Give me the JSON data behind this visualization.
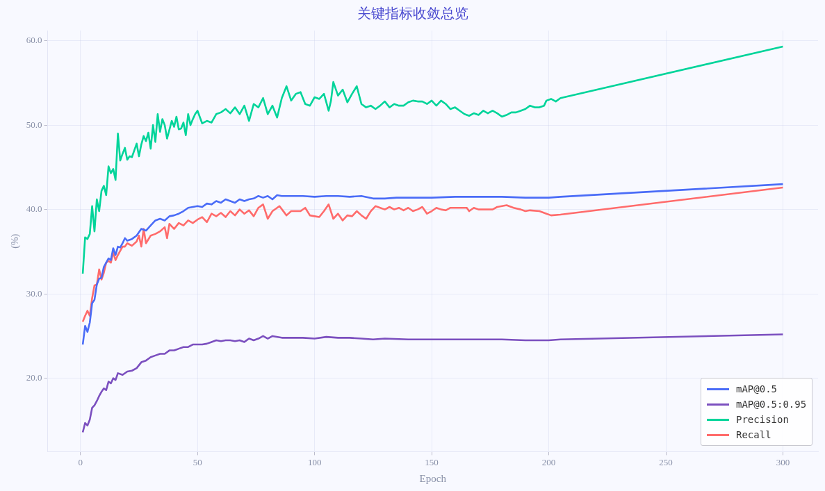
{
  "chart_data": {
    "type": "line",
    "title": "关键指标收敛总览",
    "xlabel": "Epoch",
    "ylabel": "(%)",
    "xlim": [
      -14,
      315
    ],
    "ylim": [
      11.3,
      61.2
    ],
    "xticks": [
      0,
      50,
      100,
      150,
      200,
      250,
      300
    ],
    "yticks": [
      {
        "value": 20,
        "label": "20.0"
      },
      {
        "value": 30,
        "label": "30.0"
      },
      {
        "value": 40,
        "label": "40.0"
      },
      {
        "value": 50,
        "label": "50.0"
      },
      {
        "value": 60,
        "label": "60.0"
      }
    ],
    "grid": true,
    "legend": "bottom right",
    "marker": "none",
    "line_style": "solid",
    "series": [
      {
        "name": "mAP@0.5",
        "color": "#4a6cf7",
        "x": [
          1,
          2,
          3,
          4,
          5,
          6,
          7,
          8,
          9,
          10,
          11,
          12,
          13,
          14,
          15,
          16,
          17,
          18,
          19,
          20,
          22,
          24,
          26,
          28,
          30,
          32,
          34,
          36,
          38,
          40,
          42,
          44,
          46,
          48,
          50,
          52,
          54,
          56,
          58,
          60,
          62,
          64,
          66,
          68,
          70,
          72,
          74,
          76,
          78,
          80,
          82,
          84,
          86,
          88,
          90,
          95,
          100,
          105,
          110,
          115,
          120,
          125,
          130,
          135,
          140,
          150,
          160,
          170,
          180,
          190,
          200,
          205,
          300
        ],
        "values": [
          24.0,
          26.2,
          25.5,
          26.6,
          28.9,
          29.3,
          31.1,
          31.8,
          31.9,
          33.2,
          33.7,
          34.2,
          34.0,
          35.4,
          34.6,
          35.6,
          35.5,
          36.0,
          36.6,
          36.3,
          36.5,
          36.9,
          37.7,
          37.5,
          38.1,
          38.7,
          38.9,
          38.7,
          39.2,
          39.3,
          39.5,
          39.8,
          40.2,
          40.3,
          40.4,
          40.3,
          40.7,
          40.6,
          41.0,
          40.8,
          41.2,
          41.0,
          40.8,
          41.2,
          41.0,
          41.2,
          41.3,
          41.6,
          41.4,
          41.6,
          41.2,
          41.7,
          41.6,
          41.6,
          41.6,
          41.6,
          41.5,
          41.6,
          41.6,
          41.5,
          41.6,
          41.3,
          41.3,
          41.4,
          41.4,
          41.4,
          41.5,
          41.5,
          41.5,
          41.4,
          41.4,
          41.5,
          43.0
        ]
      },
      {
        "name": "mAP@0.5:0.95",
        "color": "#7b4fbf",
        "x": [
          1,
          2,
          3,
          4,
          5,
          6,
          7,
          8,
          9,
          10,
          11,
          12,
          13,
          14,
          15,
          16,
          18,
          20,
          22,
          24,
          26,
          28,
          30,
          32,
          34,
          36,
          38,
          40,
          42,
          44,
          46,
          48,
          50,
          52,
          54,
          56,
          58,
          60,
          62,
          64,
          66,
          68,
          70,
          72,
          74,
          76,
          78,
          80,
          82,
          86,
          90,
          95,
          100,
          105,
          110,
          115,
          120,
          125,
          130,
          140,
          150,
          160,
          170,
          180,
          190,
          200,
          205,
          300
        ],
        "values": [
          13.6,
          14.7,
          14.4,
          15.1,
          16.5,
          16.8,
          17.3,
          17.9,
          18.4,
          18.8,
          18.6,
          19.6,
          19.4,
          20.0,
          19.8,
          20.6,
          20.4,
          20.8,
          20.9,
          21.2,
          21.9,
          22.1,
          22.5,
          22.7,
          22.9,
          22.9,
          23.3,
          23.3,
          23.5,
          23.7,
          23.7,
          24.0,
          24.0,
          24.0,
          24.1,
          24.3,
          24.5,
          24.4,
          24.5,
          24.5,
          24.4,
          24.5,
          24.3,
          24.7,
          24.5,
          24.7,
          25.0,
          24.7,
          25.0,
          24.8,
          24.8,
          24.8,
          24.7,
          24.9,
          24.8,
          24.8,
          24.7,
          24.6,
          24.7,
          24.6,
          24.6,
          24.6,
          24.6,
          24.6,
          24.5,
          24.5,
          24.6,
          25.2
        ]
      },
      {
        "name": "Precision",
        "color": "#00d49a",
        "x": [
          1,
          2,
          3,
          4,
          5,
          6,
          7,
          8,
          9,
          10,
          11,
          12,
          13,
          14,
          15,
          16,
          17,
          18,
          19,
          20,
          21,
          22,
          24,
          25,
          26,
          27,
          28,
          29,
          30,
          31,
          32,
          33,
          34,
          35,
          36,
          37,
          39,
          40,
          41,
          42,
          43,
          44,
          45,
          46,
          47,
          48,
          49,
          50,
          52,
          54,
          56,
          58,
          60,
          62,
          64,
          66,
          68,
          70,
          72,
          74,
          76,
          78,
          80,
          82,
          84,
          86,
          88,
          90,
          92,
          94,
          96,
          98,
          100,
          102,
          104,
          106,
          107,
          108,
          110,
          112,
          114,
          116,
          118,
          120,
          122,
          124,
          126,
          128,
          130,
          132,
          134,
          136,
          138,
          140,
          142,
          144,
          146,
          148,
          150,
          152,
          154,
          156,
          158,
          160,
          162,
          164,
          166,
          168,
          170,
          172,
          174,
          176,
          178,
          180,
          182,
          184,
          186,
          188,
          190,
          192,
          194,
          196,
          198,
          199,
          201,
          203,
          205,
          300
        ],
        "values": [
          32.4,
          36.7,
          36.5,
          37.1,
          40.4,
          37.4,
          41.2,
          39.8,
          42.2,
          42.8,
          41.7,
          45.1,
          44.3,
          44.8,
          43.5,
          49.0,
          45.8,
          46.6,
          47.3,
          45.9,
          46.3,
          46.2,
          47.8,
          46.3,
          47.7,
          48.7,
          48.1,
          49.1,
          47.2,
          50.0,
          48.0,
          51.3,
          49.2,
          50.7,
          50.0,
          48.4,
          50.5,
          49.8,
          51.0,
          49.5,
          49.6,
          50.3,
          48.8,
          51.3,
          50.0,
          50.7,
          51.3,
          51.7,
          50.2,
          50.5,
          50.3,
          51.3,
          51.5,
          51.9,
          51.4,
          52.1,
          51.3,
          52.3,
          50.5,
          52.5,
          52.1,
          53.2,
          51.3,
          52.3,
          50.9,
          53.2,
          54.6,
          52.9,
          53.7,
          53.9,
          52.5,
          52.3,
          53.3,
          53.1,
          53.7,
          51.7,
          52.9,
          55.1,
          53.5,
          54.2,
          52.7,
          53.7,
          54.6,
          52.5,
          52.1,
          52.3,
          51.9,
          52.3,
          52.8,
          52.1,
          52.5,
          52.3,
          52.3,
          52.7,
          52.9,
          52.8,
          52.8,
          52.5,
          52.9,
          52.3,
          52.9,
          52.5,
          51.9,
          52.1,
          51.7,
          51.3,
          51.1,
          51.4,
          51.2,
          51.7,
          51.4,
          51.7,
          51.4,
          51.0,
          51.2,
          51.5,
          51.5,
          51.7,
          51.9,
          52.3,
          52.1,
          52.1,
          52.3,
          52.9,
          53.1,
          52.8,
          53.2,
          59.3
        ]
      },
      {
        "name": "Recall",
        "color": "#ff6b6b",
        "x": [
          1,
          2,
          3,
          4,
          5,
          6,
          7,
          8,
          9,
          10,
          11,
          12,
          13,
          14,
          15,
          16,
          17,
          18,
          19,
          20,
          22,
          24,
          25,
          26,
          27,
          28,
          30,
          32,
          34,
          36,
          37,
          38,
          40,
          42,
          44,
          46,
          48,
          50,
          52,
          54,
          56,
          58,
          60,
          62,
          64,
          66,
          68,
          70,
          72,
          74,
          76,
          78,
          80,
          82,
          84,
          85,
          88,
          90,
          94,
          96,
          98,
          100,
          102,
          104,
          106,
          108,
          110,
          112,
          114,
          116,
          118,
          120,
          122,
          124,
          126,
          128,
          130,
          132,
          134,
          136,
          138,
          140,
          142,
          144,
          146,
          148,
          150,
          152,
          154,
          156,
          158,
          160,
          165,
          166,
          168,
          170,
          172,
          176,
          178,
          180,
          182,
          185,
          188,
          190,
          192,
          196,
          199,
          201,
          205,
          300
        ],
        "values": [
          26.7,
          27.4,
          28.0,
          27.4,
          29.5,
          31.0,
          31.1,
          32.9,
          31.7,
          32.5,
          33.7,
          33.9,
          33.7,
          34.9,
          34.0,
          34.6,
          35.1,
          35.6,
          35.6,
          36.0,
          35.7,
          36.2,
          36.9,
          35.6,
          37.7,
          36.0,
          36.9,
          37.1,
          37.4,
          37.9,
          36.6,
          38.3,
          37.7,
          38.4,
          38.1,
          38.7,
          38.4,
          38.8,
          39.1,
          38.5,
          39.5,
          39.2,
          39.6,
          39.1,
          39.8,
          39.3,
          40.0,
          39.5,
          39.9,
          39.2,
          40.2,
          40.6,
          38.9,
          39.8,
          40.2,
          40.4,
          39.3,
          39.8,
          39.8,
          40.2,
          39.3,
          39.2,
          39.1,
          39.8,
          40.6,
          38.9,
          39.5,
          38.7,
          39.3,
          39.2,
          39.8,
          39.3,
          38.9,
          39.8,
          40.4,
          40.2,
          40.0,
          40.3,
          40.0,
          40.2,
          39.9,
          40.2,
          39.8,
          40.0,
          40.3,
          39.5,
          39.8,
          40.2,
          40.0,
          39.9,
          40.2,
          40.2,
          40.2,
          39.8,
          40.2,
          40.0,
          40.0,
          40.0,
          40.3,
          40.4,
          40.5,
          40.2,
          40.0,
          39.8,
          39.9,
          39.8,
          39.5,
          39.3,
          39.4,
          42.6
        ]
      }
    ]
  }
}
